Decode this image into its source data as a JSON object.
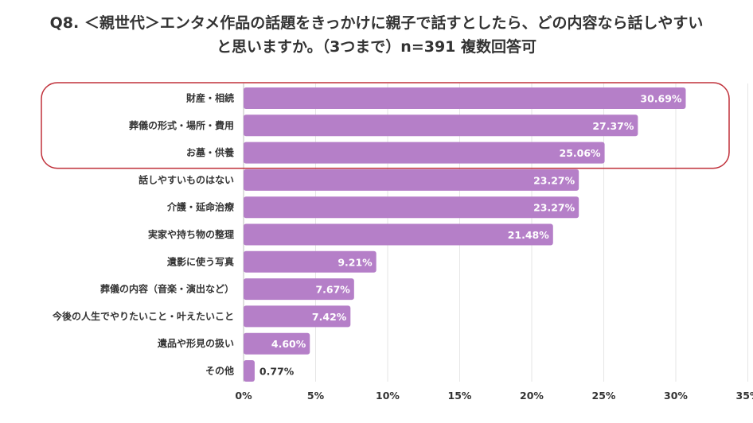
{
  "title_line1": "Q8. ＜親世代＞エンタメ作品の話題をきっかけに親子で話すとしたら、どの内容なら話しやすい",
  "title_line2": "と思いますか。（3つまで）n=391 複数回答可",
  "chart_data": {
    "type": "bar",
    "orientation": "horizontal",
    "categories": [
      "財産・相続",
      "葬儀の形式・場所・費用",
      "お墓・供養",
      "話しやすいものはない",
      "介護・延命治療",
      "実家や持ち物の整理",
      "遺影に使う写真",
      "葬儀の内容（音楽・演出など）",
      "今後の人生でやりたいこと・叶えたいこと",
      "遺品や形見の扱い",
      "その他"
    ],
    "values": [
      30.69,
      27.37,
      25.06,
      23.27,
      23.27,
      21.48,
      9.21,
      7.67,
      7.42,
      4.6,
      0.77
    ],
    "value_labels": [
      "30.69%",
      "27.37%",
      "25.06%",
      "23.27%",
      "23.27%",
      "21.48%",
      "9.21%",
      "7.67%",
      "7.42%",
      "4.60%",
      "0.77%"
    ],
    "x_ticks": [
      "0%",
      "5%",
      "10%",
      "15%",
      "20%",
      "25%",
      "30%",
      "35%"
    ],
    "xlim": [
      0,
      35
    ],
    "grid": true,
    "bar_color": "#b57fc8",
    "highlight_box_color": "#c0303a",
    "highlighted_categories": [
      "財産・相続",
      "葬儀の形式・場所・費用",
      "お墓・供養"
    ]
  }
}
